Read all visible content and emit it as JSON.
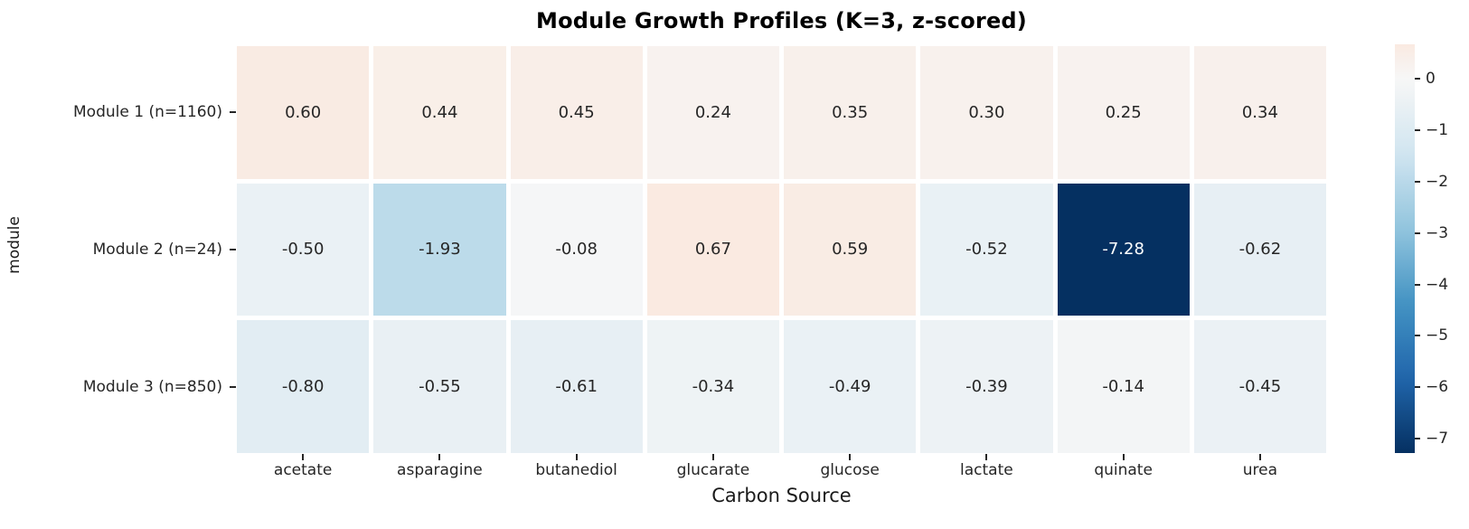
{
  "chart_data": {
    "type": "heatmap",
    "title": "Module Growth Profiles (K=3, z-scored)",
    "xlabel": "Carbon Source",
    "ylabel": "module",
    "columns": [
      "acetate",
      "asparagine",
      "butanediol",
      "glucarate",
      "glucose",
      "lactate",
      "quinate",
      "urea"
    ],
    "rows": [
      "Module 1 (n=1160)",
      "Module 2 (n=24)",
      "Module 3 (n=850)"
    ],
    "values": [
      [
        0.6,
        0.44,
        0.45,
        0.24,
        0.35,
        0.3,
        0.25,
        0.34
      ],
      [
        -0.5,
        -1.93,
        -0.08,
        0.67,
        0.59,
        -0.52,
        -7.28,
        -0.62
      ],
      [
        -0.8,
        -0.55,
        -0.61,
        -0.34,
        -0.49,
        -0.39,
        -0.14,
        -0.45
      ]
    ],
    "annotation_format": ".2f",
    "vmin": -7.28,
    "vmax": 0.67,
    "center": 0,
    "colormap": "RdBu_r",
    "colorbar_ticks": [
      0,
      -1,
      -2,
      -3,
      -4,
      -5,
      -6,
      -7
    ],
    "grid": false,
    "legend_position": "colorbar-right",
    "colors": {
      "background": "#ffffff",
      "annotation_dark": "#262626",
      "annotation_light": "#ffffff",
      "tick": "#262626",
      "extreme_low": "#053061",
      "near_zero": "#f7f7f7",
      "positive_tint": "#faeae1"
    }
  }
}
